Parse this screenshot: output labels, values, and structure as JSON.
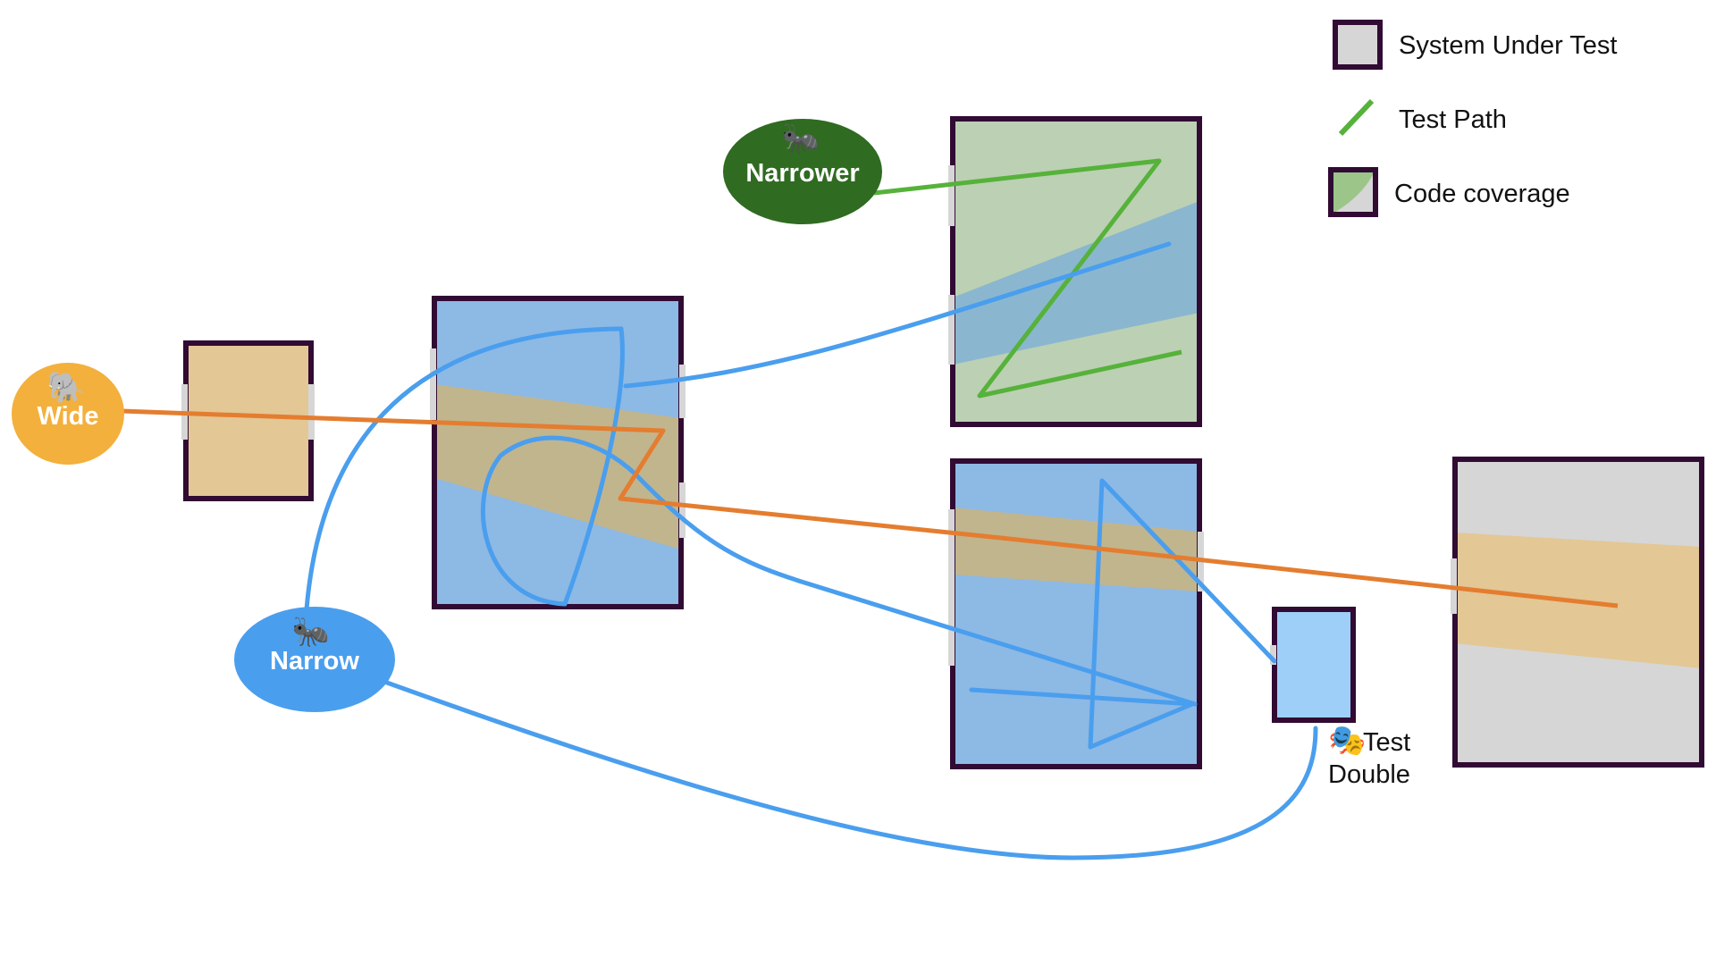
{
  "legend": {
    "system_under_test": "System Under Test",
    "test_path": "Test Path",
    "code_coverage": "Code coverage"
  },
  "nodes": {
    "wide": {
      "label": "Wide",
      "icon": "elephant-icon",
      "glyph": "🐘"
    },
    "narrow": {
      "label": "Narrow",
      "icon": "ant-icon",
      "glyph": "🐜"
    },
    "narrower": {
      "label": "Narrower",
      "icon": "ant-icon",
      "glyph": "🐜"
    }
  },
  "test_double": {
    "line1": "Test",
    "line2": "Double",
    "icon": "theater-masks-icon",
    "glyph": "🎭"
  },
  "colors": {
    "box_border": "#310b33",
    "system_fill": "#d6d6d6",
    "wide_path": "#e47d2f",
    "wide_coverage": "#e3c795",
    "narrow_path": "#4a9eee",
    "narrow_coverage": "#8db9e5",
    "narrower_path": "#56b23a",
    "narrower_coverage": "#bcd0b4",
    "test_double_fill": "#9dcff8",
    "wide_node": "#f3b03c",
    "narrow_node": "#4a9eee",
    "narrower_node": "#2f6b21"
  }
}
